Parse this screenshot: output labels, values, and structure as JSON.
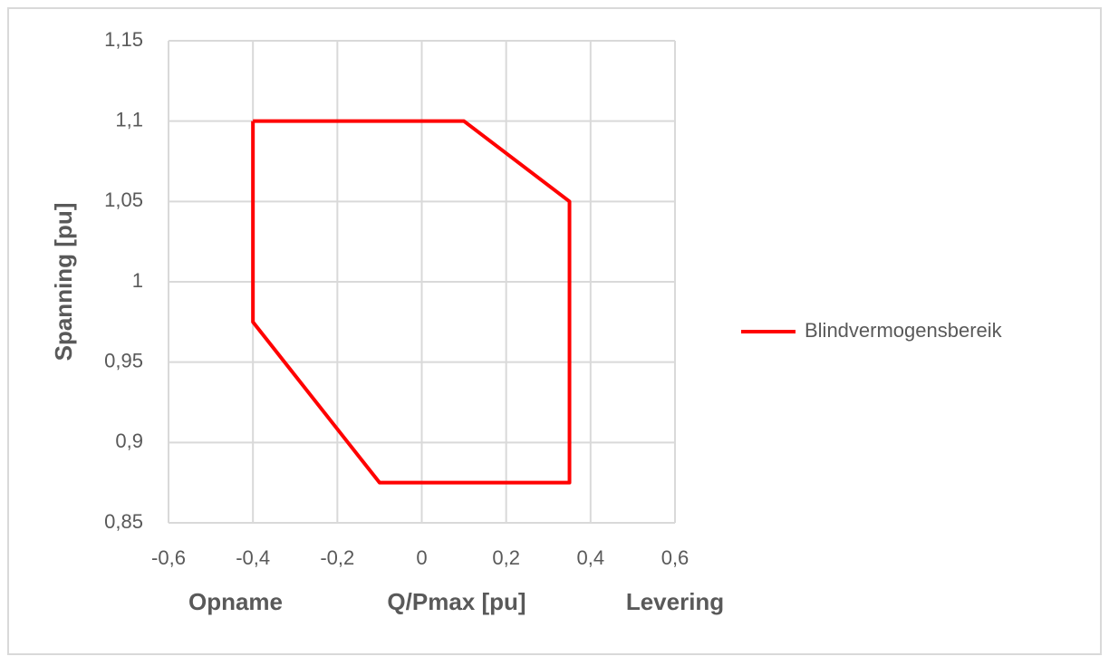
{
  "chart_data": {
    "type": "line",
    "x_label": "Q/Pmax [pu]",
    "x_left_annotation": "Opname",
    "x_right_annotation": "Levering",
    "y_label": "Spanning [pu]",
    "x": [
      -0.4,
      0.1,
      0.35,
      0.35,
      -0.1,
      -0.4,
      -0.4
    ],
    "series": [
      {
        "name": "Blindvermogensbereik",
        "color": "#ff0000",
        "values": [
          1.1,
          1.1,
          1.05,
          0.875,
          0.875,
          0.975,
          1.1
        ]
      }
    ],
    "xlim": [
      -0.6,
      0.6
    ],
    "xticks": [
      {
        "value": -0.6,
        "label": "-0,6"
      },
      {
        "value": -0.4,
        "label": "-0,4"
      },
      {
        "value": -0.2,
        "label": "-0,2"
      },
      0,
      {
        "value": 0.2,
        "label": "0,2"
      },
      {
        "value": 0.4,
        "label": "0,4"
      },
      {
        "value": 0.6,
        "label": "0,6"
      }
    ],
    "ylim": [
      0.85,
      1.15
    ],
    "yticks": [
      {
        "value": 0.85,
        "label": "0,85"
      },
      {
        "value": 0.9,
        "label": "0,9"
      },
      {
        "value": 0.95,
        "label": "0,95"
      },
      1,
      {
        "value": 1.05,
        "label": "1,05"
      },
      {
        "value": 1.1,
        "label": "1,1"
      },
      {
        "value": 1.15,
        "label": "1,15"
      }
    ],
    "grid": true,
    "legend": "right"
  }
}
